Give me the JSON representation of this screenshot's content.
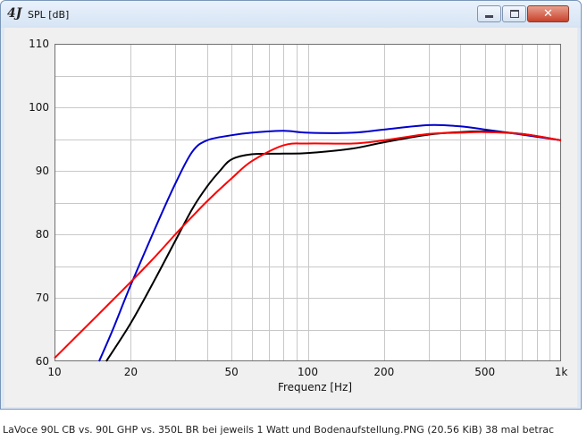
{
  "window": {
    "title": "SPL [dB]",
    "app_logo": "4J",
    "controls": [
      "minimize-icon",
      "maximize-icon",
      "close-icon"
    ]
  },
  "chart_data": {
    "type": "line",
    "title": "",
    "ylabel": "SPL [dB]",
    "xlabel": "Frequenz [Hz]",
    "x_scale": "log",
    "xlim": [
      10,
      1000
    ],
    "ylim": [
      60,
      110
    ],
    "x_ticks": [
      {
        "value": 10,
        "label": "10"
      },
      {
        "value": 20,
        "label": "20"
      },
      {
        "value": 50,
        "label": "50"
      },
      {
        "value": 100,
        "label": "100"
      },
      {
        "value": 200,
        "label": "200"
      },
      {
        "value": 500,
        "label": "500"
      },
      {
        "value": 1000,
        "label": "1k"
      }
    ],
    "y_ticks": [
      {
        "value": 60,
        "label": "60"
      },
      {
        "value": 70,
        "label": "70"
      },
      {
        "value": 80,
        "label": "80"
      },
      {
        "value": 90,
        "label": "90"
      },
      {
        "value": 100,
        "label": "100"
      },
      {
        "value": 110,
        "label": "110"
      }
    ],
    "grid": true,
    "series": [
      {
        "color": "#0000cc",
        "points": [
          [
            15,
            60
          ],
          [
            17,
            65
          ],
          [
            20,
            72
          ],
          [
            25,
            81
          ],
          [
            30,
            88
          ],
          [
            35,
            93
          ],
          [
            40,
            94.8
          ],
          [
            50,
            95.6
          ],
          [
            60,
            96
          ],
          [
            80,
            96.3
          ],
          [
            100,
            96
          ],
          [
            150,
            96
          ],
          [
            200,
            96.5
          ],
          [
            300,
            97.2
          ],
          [
            400,
            97
          ],
          [
            500,
            96.5
          ],
          [
            700,
            95.7
          ],
          [
            1000,
            94.8
          ]
        ]
      },
      {
        "color": "#000000",
        "points": [
          [
            16,
            60
          ],
          [
            20,
            66
          ],
          [
            25,
            73
          ],
          [
            30,
            79
          ],
          [
            35,
            84
          ],
          [
            40,
            87.5
          ],
          [
            45,
            90
          ],
          [
            50,
            91.8
          ],
          [
            60,
            92.6
          ],
          [
            80,
            92.7
          ],
          [
            100,
            92.8
          ],
          [
            150,
            93.5
          ],
          [
            200,
            94.5
          ],
          [
            300,
            95.7
          ],
          [
            400,
            96.1
          ],
          [
            500,
            96.2
          ],
          [
            700,
            95.8
          ],
          [
            1000,
            94.8
          ]
        ]
      },
      {
        "color": "#ff0000",
        "points": [
          [
            10,
            60.5
          ],
          [
            15,
            67.5
          ],
          [
            20,
            72.5
          ],
          [
            25,
            76.5
          ],
          [
            30,
            80
          ],
          [
            35,
            82.8
          ],
          [
            40,
            85.2
          ],
          [
            50,
            88.8
          ],
          [
            60,
            91.5
          ],
          [
            80,
            94
          ],
          [
            100,
            94.3
          ],
          [
            150,
            94.3
          ],
          [
            200,
            94.8
          ],
          [
            300,
            95.8
          ],
          [
            400,
            96
          ],
          [
            500,
            96.1
          ],
          [
            700,
            95.8
          ],
          [
            1000,
            94.8
          ]
        ]
      }
    ]
  },
  "caption": "LaVoce 90L CB vs. 90L GHP vs. 350L BR bei jeweils 1 Watt und Bodenaufstellung.PNG (20.56 KiB) 38 mal betrac"
}
